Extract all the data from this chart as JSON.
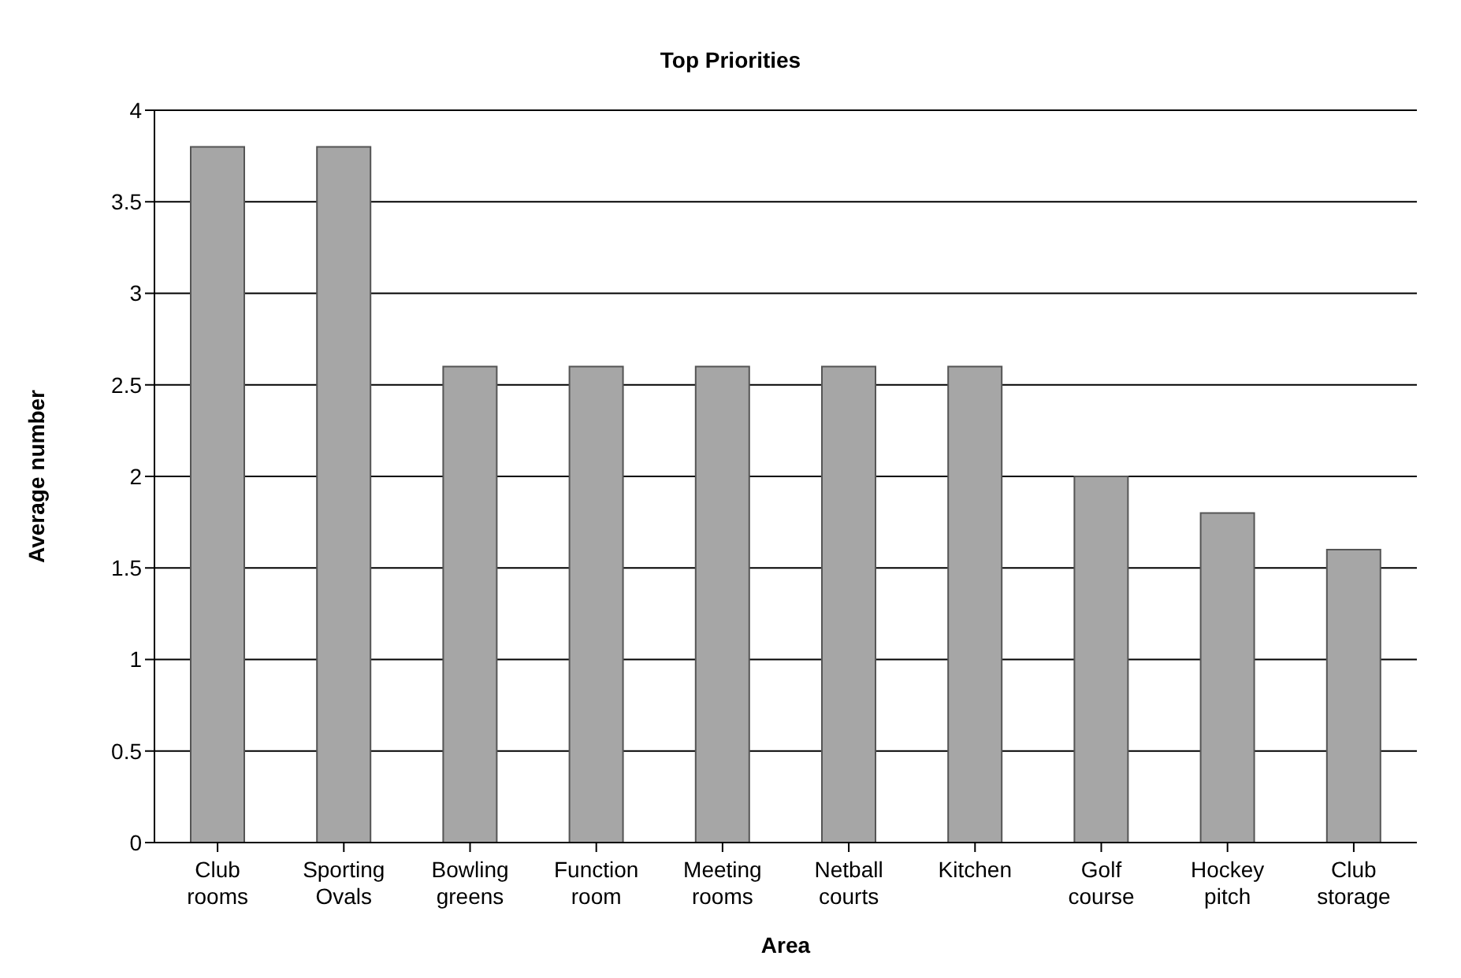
{
  "chart_data": {
    "type": "bar",
    "title": "Top Priorities",
    "xlabel": "Area",
    "ylabel": "Average number",
    "categories": [
      "Club rooms",
      "Sporting Ovals",
      "Bowling greens",
      "Function room",
      "Meeting rooms",
      "Netball courts",
      "Kitchen",
      "Golf course",
      "Hockey pitch",
      "Club storage"
    ],
    "values": [
      3.8,
      3.8,
      2.6,
      2.6,
      2.6,
      2.6,
      2.6,
      2.0,
      1.8,
      1.6
    ],
    "color": "#a6a6a6",
    "ylim": [
      0,
      4
    ],
    "yticks": [
      0,
      0.5,
      1,
      1.5,
      2,
      2.5,
      3,
      3.5,
      4
    ],
    "grid": "y"
  }
}
